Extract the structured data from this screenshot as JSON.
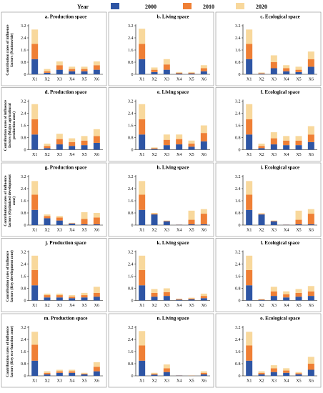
{
  "legend": {
    "title": "Year",
    "entries": [
      {
        "label": "2000",
        "color": "#2e55a4"
      },
      {
        "label": "2010",
        "color": "#ef7f35"
      },
      {
        "label": "2020",
        "color": "#f8d89c"
      }
    ]
  },
  "chart_data": {
    "type": "bar",
    "stacked": true,
    "categories": [
      "X1",
      "X2",
      "X3",
      "X4",
      "X5",
      "X6"
    ],
    "series_names": [
      "2000",
      "2010",
      "2020"
    ],
    "colors": [
      "#2e55a4",
      "#ef7f35",
      "#f8d89c"
    ],
    "ylim": [
      0,
      3.2
    ],
    "yticks": [
      "0",
      "0.8",
      "1.6",
      "2.4",
      "3.2"
    ],
    "rows": [
      {
        "ylabel": [
          "Contribution rates of influence",
          "factors (Nationwide)"
        ],
        "panels": [
          {
            "title": "a. Production space",
            "stacks": [
              [
                1.0,
                1.0,
                0.95
              ],
              [
                0.1,
                0.1,
                0.15
              ],
              [
                0.3,
                0.3,
                0.25
              ],
              [
                0.2,
                0.15,
                0.15
              ],
              [
                0.2,
                0.15,
                0.15
              ],
              [
                0.3,
                0.3,
                0.25
              ]
            ]
          },
          {
            "title": "b. Living space",
            "stacks": [
              [
                1.0,
                1.0,
                1.0
              ],
              [
                0.15,
                0.15,
                0.15
              ],
              [
                0.3,
                0.35,
                0.35
              ],
              [
                0.05,
                0.05,
                0.05
              ],
              [
                0.05,
                0.05,
                0.05
              ],
              [
                0.2,
                0.2,
                0.2
              ]
            ]
          },
          {
            "title": "c. Ecological space",
            "stacks": [
              [
                1.0,
                1.0,
                0.95
              ],
              [
                0.04,
                0.04,
                0.04
              ],
              [
                0.4,
                0.4,
                0.45
              ],
              [
                0.2,
                0.2,
                0.2
              ],
              [
                0.15,
                0.15,
                0.2
              ],
              [
                0.5,
                0.5,
                0.5
              ]
            ]
          }
        ]
      },
      {
        "ylabel": [
          "Contribution rates of influence",
          "factors (Major agricultural",
          "production zone)"
        ],
        "panels": [
          {
            "title": "d. Production space",
            "stacks": [
              [
                1.0,
                1.0,
                1.0
              ],
              [
                0.1,
                0.15,
                0.15
              ],
              [
                0.35,
                0.35,
                0.35
              ],
              [
                0.25,
                0.25,
                0.25
              ],
              [
                0.3,
                0.3,
                0.3
              ],
              [
                0.45,
                0.45,
                0.45
              ]
            ]
          },
          {
            "title": "e. Living space",
            "stacks": [
              [
                1.0,
                1.0,
                1.0
              ],
              [
                0.05,
                0.05,
                0.05
              ],
              [
                0.3,
                0.35,
                0.35
              ],
              [
                0.35,
                0.35,
                0.3
              ],
              [
                0.2,
                0.2,
                0.2
              ],
              [
                0.55,
                0.55,
                0.5
              ]
            ]
          },
          {
            "title": "f. Ecological space",
            "stacks": [
              [
                1.0,
                1.0,
                1.0
              ],
              [
                0.1,
                0.15,
                0.15
              ],
              [
                0.35,
                0.4,
                0.4
              ],
              [
                0.3,
                0.3,
                0.3
              ],
              [
                0.3,
                0.3,
                0.3
              ],
              [
                0.5,
                0.5,
                0.55
              ]
            ]
          }
        ]
      },
      {
        "ylabel": [
          "Contribution rates of influence",
          "factors (Optimized development",
          "zone)"
        ],
        "panels": [
          {
            "title": "g. Production space",
            "stacks": [
              [
                1.0,
                1.0,
                0.9
              ],
              [
                0.45,
                0.15,
                0.1
              ],
              [
                0.3,
                0.2,
                0.1
              ],
              [
                0.1,
                0.03,
                0.02
              ],
              [
                0.05,
                0.35,
                0.45
              ],
              [
                0.05,
                0.45,
                0.3
              ]
            ]
          },
          {
            "title": "h. Living space",
            "stacks": [
              [
                1.0,
                1.0,
                0.9
              ],
              [
                0.7,
                0.05,
                0.05
              ],
              [
                0.25,
                0.03,
                0.02
              ],
              [
                0.02,
                0.01,
                0.01
              ],
              [
                0.05,
                0.3,
                0.6
              ],
              [
                0.05,
                0.7,
                0.3
              ]
            ]
          },
          {
            "title": "i. Ecological space",
            "stacks": [
              [
                1.0,
                1.0,
                0.9
              ],
              [
                0.7,
                0.04,
                0.04
              ],
              [
                0.25,
                0.03,
                0.02
              ],
              [
                0.02,
                0.01,
                0.01
              ],
              [
                0.05,
                0.3,
                0.6
              ],
              [
                0.05,
                0.7,
                0.3
              ]
            ]
          }
        ]
      },
      {
        "ylabel": [
          "Contribution rates of influence",
          "factors (Key development zone)"
        ],
        "panels": [
          {
            "title": "j. Production space",
            "stacks": [
              [
                1.0,
                1.0,
                0.95
              ],
              [
                0.2,
                0.15,
                0.1
              ],
              [
                0.2,
                0.15,
                0.1
              ],
              [
                0.15,
                0.1,
                0.1
              ],
              [
                0.2,
                0.15,
                0.15
              ],
              [
                0.25,
                0.25,
                0.4
              ]
            ]
          },
          {
            "title": "k. Living space",
            "stacks": [
              [
                1.0,
                1.0,
                0.95
              ],
              [
                0.25,
                0.25,
                0.25
              ],
              [
                0.3,
                0.25,
                0.25
              ],
              [
                0.05,
                0.04,
                0.03
              ],
              [
                0.07,
                0.06,
                0.05
              ],
              [
                0.15,
                0.15,
                0.15
              ]
            ]
          },
          {
            "title": "l. Ecological space",
            "stacks": [
              [
                1.0,
                1.0,
                0.95
              ],
              [
                0.04,
                0.03,
                0.03
              ],
              [
                0.3,
                0.3,
                0.3
              ],
              [
                0.2,
                0.2,
                0.2
              ],
              [
                0.25,
                0.25,
                0.25
              ],
              [
                0.3,
                0.3,
                0.35
              ]
            ]
          }
        ]
      },
      {
        "ylabel": [
          "Contribution rates of influence",
          "factors (Key eco-function zone)"
        ],
        "panels": [
          {
            "title": "m. Production space",
            "stacks": [
              [
                1.0,
                1.05,
                0.85
              ],
              [
                0.1,
                0.1,
                0.1
              ],
              [
                0.2,
                0.1,
                0.1
              ],
              [
                0.2,
                0.1,
                0.1
              ],
              [
                0.1,
                0.05,
                0.05
              ],
              [
                0.3,
                0.3,
                0.3
              ]
            ]
          },
          {
            "title": "n. Living space",
            "stacks": [
              [
                1.0,
                1.0,
                0.95
              ],
              [
                0.08,
                0.06,
                0.06
              ],
              [
                0.25,
                0.25,
                0.25
              ],
              [
                0.02,
                0.01,
                0.01
              ],
              [
                0.01,
                0.01,
                0.01
              ],
              [
                0.1,
                0.1,
                0.1
              ]
            ]
          },
          {
            "title": "o. Ecological space",
            "stacks": [
              [
                1.0,
                1.0,
                0.9
              ],
              [
                0.1,
                0.1,
                0.1
              ],
              [
                0.25,
                0.25,
                0.2
              ],
              [
                0.2,
                0.15,
                0.15
              ],
              [
                0.1,
                0.08,
                0.07
              ],
              [
                0.4,
                0.4,
                0.45
              ]
            ]
          }
        ]
      }
    ]
  }
}
